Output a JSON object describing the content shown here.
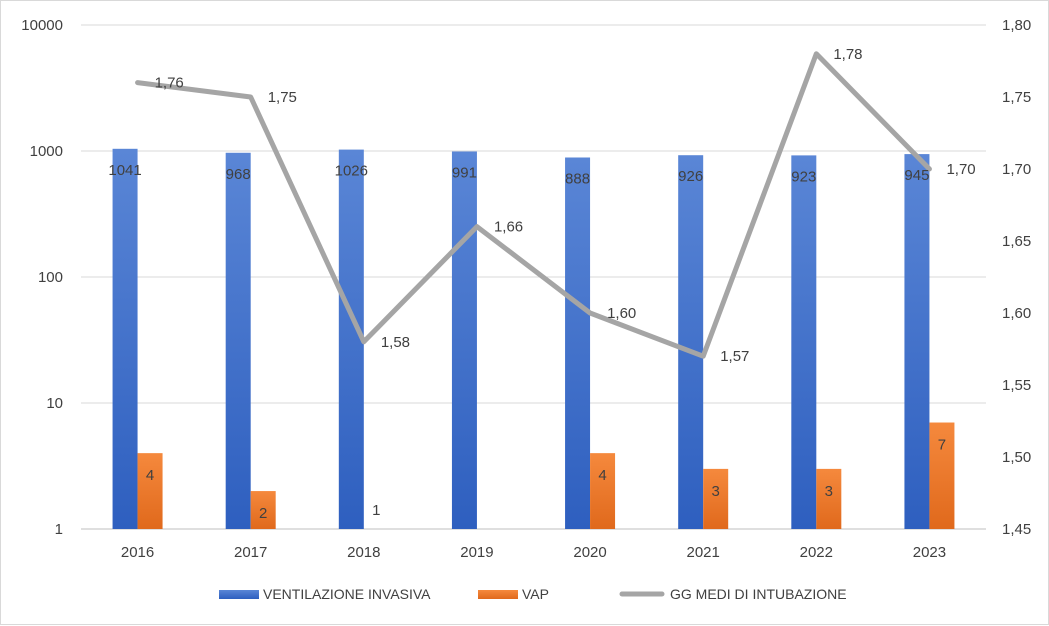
{
  "chart_data": {
    "type": "bar",
    "categories": [
      "2016",
      "2017",
      "2018",
      "2019",
      "2020",
      "2021",
      "2022",
      "2023"
    ],
    "series": [
      {
        "name": "VENTILAZIONE INVASIVA",
        "kind": "bar",
        "axis": "left",
        "color": "#4472c4",
        "values": [
          1041,
          968,
          1026,
          991,
          888,
          926,
          923,
          945
        ],
        "labels": [
          "1041",
          "968",
          "1026",
          "991",
          "888",
          "926",
          "923",
          "945"
        ]
      },
      {
        "name": "VAP",
        "kind": "bar",
        "axis": "left",
        "color": "#ed7d31",
        "values": [
          4,
          2,
          1,
          null,
          4,
          3,
          3,
          7
        ],
        "labels": [
          "4",
          "2",
          "1",
          "",
          "4",
          "3",
          "3",
          "7"
        ]
      },
      {
        "name": "GG MEDI DI INTUBAZIONE",
        "kind": "line",
        "axis": "right",
        "color": "#a5a5a5",
        "values": [
          1.76,
          1.75,
          1.58,
          1.66,
          1.6,
          1.57,
          1.78,
          1.7
        ],
        "labels": [
          "1,76",
          "1,75",
          "1,58",
          "1,66",
          "1,60",
          "1,57",
          "1,78",
          "1,70"
        ]
      }
    ],
    "y_left": {
      "scale": "log",
      "range": [
        1,
        10000
      ],
      "ticks": [
        1,
        10,
        100,
        1000,
        10000
      ],
      "tick_labels": [
        "1",
        "10",
        "100",
        "1000",
        "10000"
      ]
    },
    "y_right": {
      "scale": "linear",
      "range": [
        1.45,
        1.8
      ],
      "ticks": [
        1.45,
        1.5,
        1.55,
        1.6,
        1.65,
        1.7,
        1.75,
        1.8
      ],
      "tick_labels": [
        "1,45",
        "1,50",
        "1,55",
        "1,60",
        "1,65",
        "1,70",
        "1,75",
        "1,80"
      ]
    },
    "grid": true,
    "legend": "bottom"
  }
}
